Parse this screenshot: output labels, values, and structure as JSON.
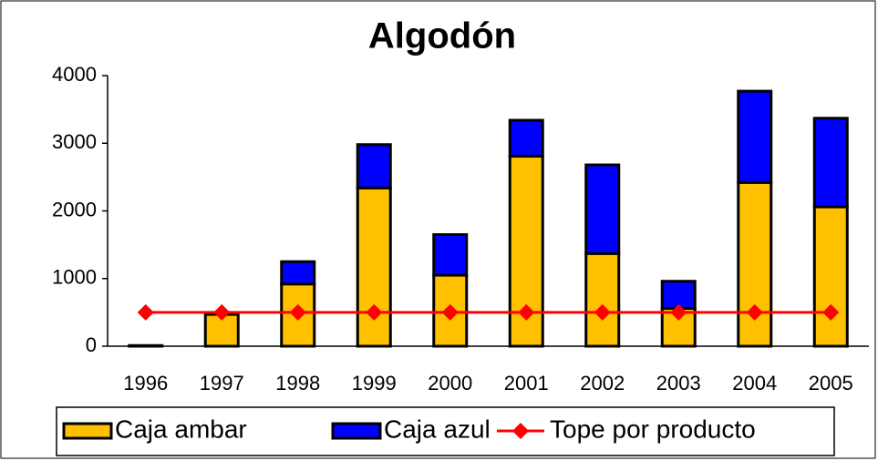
{
  "chart_data": {
    "type": "bar",
    "title": "Algodón",
    "categories": [
      "1996",
      "1997",
      "1998",
      "1999",
      "2000",
      "2001",
      "2002",
      "2003",
      "2004",
      "2005"
    ],
    "series": [
      {
        "name": "Caja ambar",
        "color": "#ffc000",
        "values": [
          10,
          470,
          920,
          2340,
          1050,
          2810,
          1370,
          560,
          2420,
          2060
        ]
      },
      {
        "name": "Caja azul",
        "color": "#0000ff",
        "values": [
          0,
          0,
          330,
          640,
          600,
          530,
          1310,
          400,
          1350,
          1310
        ]
      },
      {
        "name": "Tope por producto",
        "type": "line",
        "color": "#ff0000",
        "values": [
          500,
          500,
          500,
          500,
          500,
          500,
          500,
          500,
          500,
          500
        ]
      }
    ],
    "ylim": [
      0,
      4000
    ],
    "yticks": [
      0,
      1000,
      2000,
      3000,
      4000
    ],
    "legend": "bottom",
    "stacked": true
  }
}
